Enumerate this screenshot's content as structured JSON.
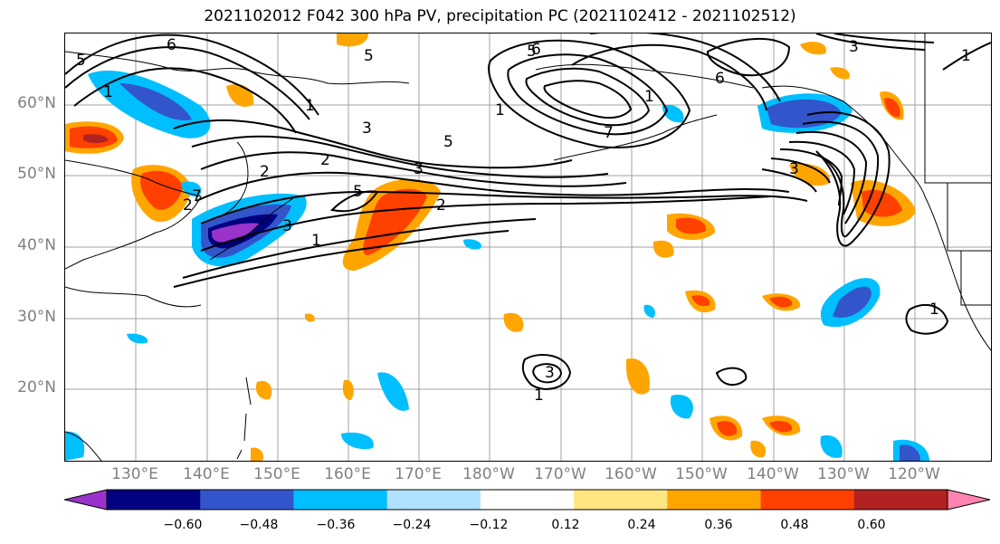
{
  "title": "2021102012 F042 300 hPa PV, precipitation PC (2021102412 - 2021102512)",
  "lat_labels": [
    "60°N",
    "50°N",
    "40°N",
    "30°N",
    "20°N"
  ],
  "lon_labels": [
    "130°E",
    "140°E",
    "150°E",
    "160°E",
    "170°E",
    "180°W",
    "170°W",
    "160°W",
    "150°W",
    "140°W",
    "130°W",
    "120°W"
  ],
  "colorbar": {
    "ticks": [
      "−0.60",
      "−0.48",
      "−0.36",
      "−0.24",
      "−0.12",
      "0.12",
      "0.24",
      "0.36",
      "0.48",
      "0.60"
    ],
    "colors": [
      "#9933cc",
      "#000080",
      "#3355cc",
      "#00bfff",
      "#b0e2ff",
      "#ffffff",
      "#ffe680",
      "#ffa500",
      "#ff4000",
      "#b22222",
      "#ff85b0"
    ]
  },
  "contour_labels": [
    "6",
    "5",
    "5",
    "5",
    "6",
    "3",
    "1",
    "1",
    "1",
    "2",
    "2",
    "2",
    "3",
    "3",
    "5",
    "5",
    "2",
    "1",
    "1",
    "3",
    "7",
    "7",
    "3",
    "1",
    "6",
    "1",
    "3",
    "1"
  ]
}
